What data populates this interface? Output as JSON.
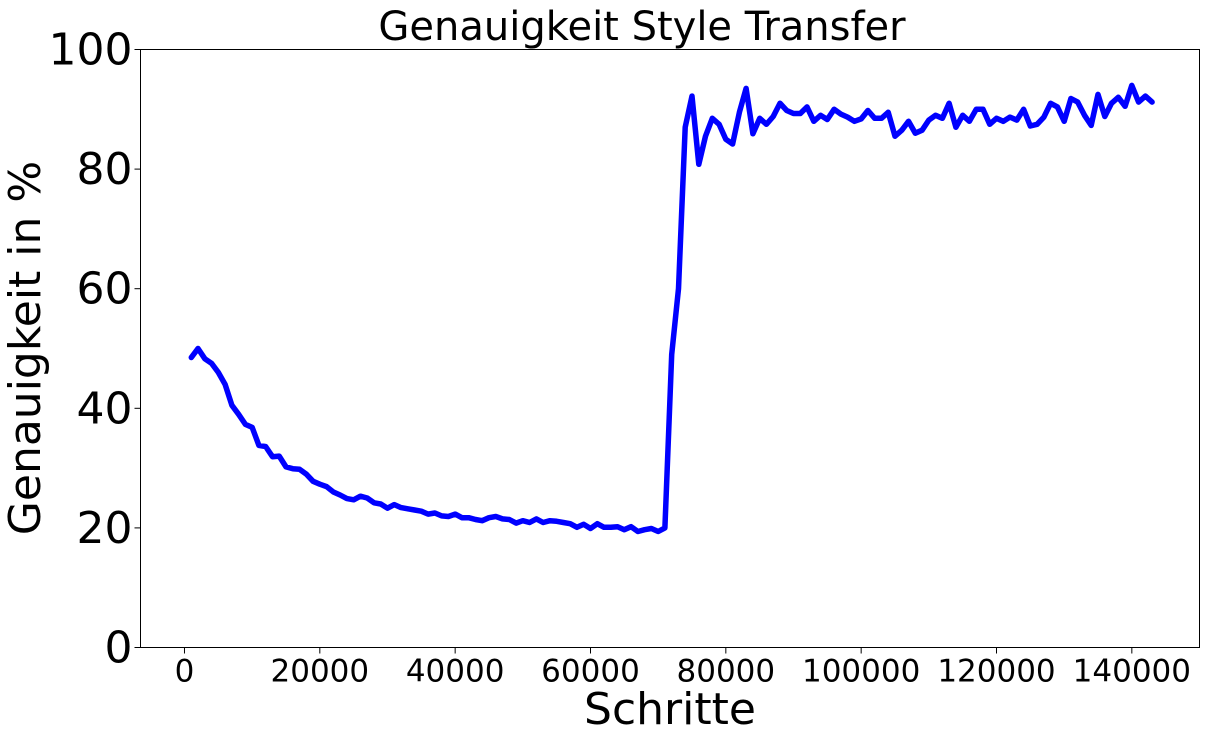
{
  "chart_data": {
    "type": "line",
    "title": "Genauigkeit Style Transfer",
    "xlabel": "Schritte",
    "ylabel": "Genauigkeit in %",
    "xlim": [
      -6500,
      150000
    ],
    "ylim": [
      0,
      100
    ],
    "xticks": [
      0,
      20000,
      40000,
      60000,
      80000,
      100000,
      120000,
      140000
    ],
    "yticks": [
      0,
      20,
      40,
      60,
      80,
      100
    ],
    "grid": false,
    "color": "#0000ff",
    "series": [
      {
        "x": [
          1000,
          2000,
          3000,
          4000,
          5000,
          6000,
          7000,
          8000,
          9000,
          10000,
          11000,
          12000,
          13000,
          14000,
          15000,
          16000,
          17000,
          18000,
          19000,
          20000,
          21000,
          22000,
          23000,
          24000,
          25000,
          26000,
          27000,
          28000,
          29000,
          30000,
          31000,
          32000,
          33000,
          34000,
          35000,
          36000,
          37000,
          38000,
          39000,
          40000,
          41000,
          42000,
          43000,
          44000,
          45000,
          46000,
          47000,
          48000,
          49000,
          50000,
          51000,
          52000,
          53000,
          54000,
          55000,
          56000,
          57000,
          58000,
          59000,
          60000,
          61000,
          62000,
          63000,
          64000,
          65000,
          66000,
          67000,
          68000,
          69000,
          70000,
          71000,
          72000,
          73000,
          74000,
          75000,
          76000,
          77000,
          78000,
          79000,
          80000,
          81000,
          82000,
          83000,
          84000,
          85000,
          86000,
          87000,
          88000,
          89000,
          90000,
          91000,
          92000,
          93000,
          94000,
          95000,
          96000,
          97000,
          98000,
          99000,
          100000,
          101000,
          102000,
          103000,
          104000,
          105000,
          106000,
          107000,
          108000,
          109000,
          110000,
          111000,
          112000,
          113000,
          114000,
          115000,
          116000,
          117000,
          118000,
          119000,
          120000,
          121000,
          122000,
          123000,
          124000,
          125000,
          126000,
          127000,
          128000,
          129000,
          130000,
          131000,
          132000,
          133000,
          134000,
          135000,
          136000,
          137000,
          138000,
          139000,
          140000,
          141000,
          142000,
          143000
        ],
        "values": [
          48.5,
          50.0,
          48.3,
          47.5,
          46.0,
          44.0,
          40.5,
          39.0,
          37.3,
          36.8,
          33.8,
          33.6,
          31.9,
          32.0,
          30.2,
          29.9,
          29.8,
          29.0,
          27.8,
          27.3,
          26.9,
          26.0,
          25.5,
          24.9,
          24.7,
          25.3,
          25.0,
          24.2,
          24.0,
          23.3,
          23.9,
          23.4,
          23.2,
          23.0,
          22.8,
          22.3,
          22.5,
          22.0,
          21.9,
          22.3,
          21.7,
          21.7,
          21.4,
          21.2,
          21.7,
          21.9,
          21.5,
          21.4,
          20.8,
          21.2,
          20.9,
          21.5,
          20.9,
          21.2,
          21.1,
          20.9,
          20.7,
          20.1,
          20.6,
          19.9,
          20.7,
          20.1,
          20.1,
          20.2,
          19.7,
          20.2,
          19.4,
          19.7,
          19.9,
          19.4,
          20.0,
          49.0,
          60.0,
          87.0,
          92.2,
          80.8,
          85.5,
          88.5,
          87.5,
          85.0,
          84.2,
          89.5,
          93.5,
          85.9,
          88.5,
          87.5,
          88.8,
          91.0,
          89.8,
          89.3,
          89.3,
          90.4,
          88.0,
          89.0,
          88.3,
          90.0,
          89.2,
          88.7,
          88.0,
          88.4,
          89.8,
          88.5,
          88.5,
          89.5,
          85.5,
          86.5,
          88.0,
          86.0,
          86.5,
          88.2,
          89.0,
          88.5,
          91.0,
          87.0,
          89.0,
          88.0,
          90.0,
          90.0,
          87.5,
          88.5,
          88.0,
          88.7,
          88.2,
          90.0,
          87.2,
          87.5,
          88.7,
          91.0,
          90.4,
          88.0,
          91.8,
          91.2,
          89.0,
          87.3,
          92.5,
          88.8,
          91.0,
          92.0,
          90.5,
          94.0,
          91.2,
          92.2,
          91.2
        ]
      }
    ]
  }
}
